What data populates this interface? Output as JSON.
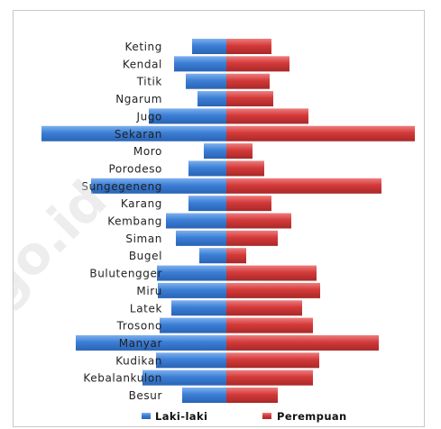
{
  "watermark": "go.id",
  "chart_data": {
    "type": "bar",
    "orientation": "horizontal-diverging",
    "categories": [
      "Keting",
      "Kendal",
      "Titik",
      "Ngarum",
      "Jugo",
      "Sekaran",
      "Moro",
      "Porodeso",
      "Sungegeneng",
      "Karang",
      "Kembang",
      "Siman",
      "Bugel",
      "Bulutengger",
      "Miru",
      "Latek",
      "Trosono",
      "Manyar",
      "Kudikan",
      "Kebalankulon",
      "Besur"
    ],
    "series": [
      {
        "name": "Laki-laki",
        "color": "#3b7fd6",
        "values": [
          38,
          58,
          45,
          32,
          86,
          205,
          25,
          42,
          150,
          42,
          67,
          56,
          30,
          77,
          76,
          61,
          74,
          167,
          78,
          93,
          49
        ]
      },
      {
        "name": "Perempuan",
        "color": "#d43a3a",
        "values": [
          50,
          70,
          48,
          52,
          91,
          209,
          29,
          42,
          172,
          50,
          72,
          57,
          22,
          100,
          104,
          84,
          96,
          169,
          103,
          96,
          57
        ]
      }
    ],
    "xlim": [
      -210,
      210
    ],
    "legend_position": "bottom",
    "grid": false
  }
}
